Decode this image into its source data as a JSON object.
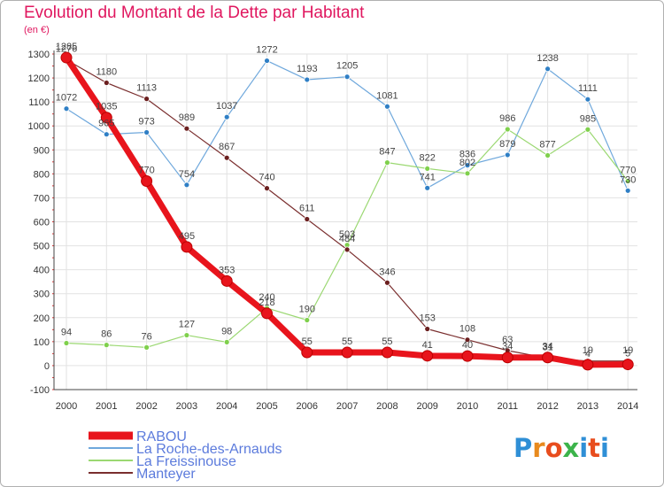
{
  "header": {
    "title": "Evolution du Montant de la Dette par Habitant",
    "unit": "(en €)"
  },
  "brand": {
    "text": "Proxiti",
    "colors": [
      "#2f8fd6",
      "#e88a1e",
      "#e84d1e",
      "#3cb44b",
      "#2f8fd6",
      "#e84d1e",
      "#2f8fd6"
    ]
  },
  "chart_data": {
    "type": "line",
    "title": "Evolution du Montant de la Dette par Habitant",
    "ylabel": "(en €)",
    "xlabel": "",
    "x": [
      "2000",
      "2001",
      "2002",
      "2003",
      "2004",
      "2005",
      "2006",
      "2007",
      "2008",
      "2009",
      "2010",
      "2011",
      "2012",
      "2013",
      "2014"
    ],
    "ylim": [
      -100,
      1300
    ],
    "yticks": [
      "-100",
      "0",
      "100",
      "200",
      "300",
      "400",
      "500",
      "600",
      "700",
      "800",
      "900",
      "1000",
      "1100",
      "1200",
      "1300"
    ],
    "grid": true,
    "legend_position": "bottom-left",
    "series": [
      {
        "name": "RABOU",
        "color": "#e8141c",
        "values": [
          1285,
          1035,
          770,
          495,
          353,
          218,
          55,
          55,
          55,
          41,
          40,
          34,
          34,
          4,
          5
        ],
        "labels": [
          "1285",
          "1035",
          "770",
          "495",
          "353",
          "218",
          "55",
          "55",
          "55",
          "41",
          "40",
          "34",
          "34",
          "4",
          "5"
        ]
      },
      {
        "name": "La Roche-des-Arnauds",
        "color": "#6fa8dc",
        "values": [
          1072,
          965,
          973,
          754,
          1037,
          1272,
          1193,
          1205,
          1081,
          741,
          836,
          879,
          1238,
          1111,
          730
        ],
        "labels": [
          "1072",
          "965",
          "973",
          "754",
          "1037",
          "1272",
          "1193",
          "1205",
          "1081",
          "741",
          "836",
          "879",
          "1238",
          "1111",
          "730"
        ]
      },
      {
        "name": "La Freissinouse",
        "color": "#9bd872",
        "values": [
          94,
          86,
          76,
          127,
          98,
          240,
          190,
          503,
          847,
          822,
          802,
          986,
          877,
          985,
          770
        ],
        "labels": [
          "94",
          "86",
          "76",
          "127",
          "98",
          "240",
          "190",
          "503",
          "847",
          "822",
          "802",
          "986",
          "877",
          "985",
          "770"
        ]
      },
      {
        "name": "Manteyer",
        "color": "#7a2e2e",
        "values": [
          1276,
          1180,
          1113,
          989,
          867,
          740,
          611,
          484,
          346,
          153,
          108,
          63,
          31,
          19,
          19
        ],
        "labels": [
          "1276",
          "1180",
          "1113",
          "989",
          "867",
          "740",
          "611",
          "484",
          "346",
          "153",
          "108",
          "63",
          "31",
          "19",
          "19"
        ]
      }
    ]
  }
}
